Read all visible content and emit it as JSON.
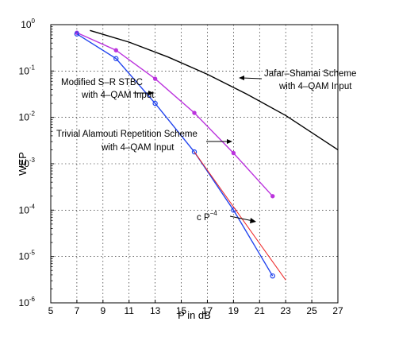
{
  "chart_data": {
    "type": "line",
    "title": "",
    "xlabel": "P in dB",
    "ylabel": "WEP",
    "xlim": [
      5,
      27
    ],
    "ylim": [
      1e-06,
      1
    ],
    "yscale": "log",
    "grid": true,
    "x_ticks": [
      "5",
      "7",
      "9",
      "11",
      "13",
      "15",
      "17",
      "19",
      "21",
      "23",
      "25",
      "27"
    ],
    "y_ticks": [
      {
        "base": "10",
        "exp": "0",
        "value": 1
      },
      {
        "base": "10",
        "exp": "-1",
        "value": 0.1
      },
      {
        "base": "10",
        "exp": "-2",
        "value": 0.01
      },
      {
        "base": "10",
        "exp": "-3",
        "value": 0.001
      },
      {
        "base": "10",
        "exp": "-4",
        "value": 0.0001
      },
      {
        "base": "10",
        "exp": "-5",
        "value": 1e-05
      },
      {
        "base": "10",
        "exp": "-6",
        "value": 1e-06
      }
    ],
    "series": [
      {
        "name": "Jafar-Shamai Scheme with 4-QAM Input",
        "color": "#000000",
        "marker": "none",
        "x": [
          8,
          11,
          14,
          17,
          20,
          23,
          27
        ],
        "y": [
          0.75,
          0.42,
          0.2,
          0.085,
          0.032,
          0.011,
          0.002
        ]
      },
      {
        "name": "Trivial Alamouti Repetition Scheme with 4-QAM Input",
        "color": "#bb33dd",
        "marker": "dot",
        "x": [
          7,
          10,
          13,
          16,
          19,
          22
        ],
        "y": [
          0.67,
          0.28,
          0.068,
          0.0125,
          0.0017,
          0.0002
        ]
      },
      {
        "name": "Modified S-R STBC with 4-QAM Input",
        "color": "#2244ee",
        "marker": "circle",
        "x": [
          7,
          10,
          13,
          16,
          19,
          22
        ],
        "y": [
          0.63,
          0.185,
          0.02,
          0.0018,
          0.0001,
          3.8e-06
        ]
      },
      {
        "name": "c P^-4",
        "color": "#ee2222",
        "marker": "none",
        "x": [
          16,
          23
        ],
        "y": [
          0.0018,
          3.1e-06
        ]
      }
    ],
    "annotations": [
      {
        "line1": "Jafar–Shamai Scheme",
        "line2": "with 4–QAM Input"
      },
      {
        "line1": "Modified S–R STBC",
        "line2": "with 4–QAM Input"
      },
      {
        "line1": "Trivial Alamouti Repetition Scheme",
        "line2": "with 4–QAM Input"
      },
      {
        "base": "c P",
        "sup": "−4"
      }
    ]
  }
}
